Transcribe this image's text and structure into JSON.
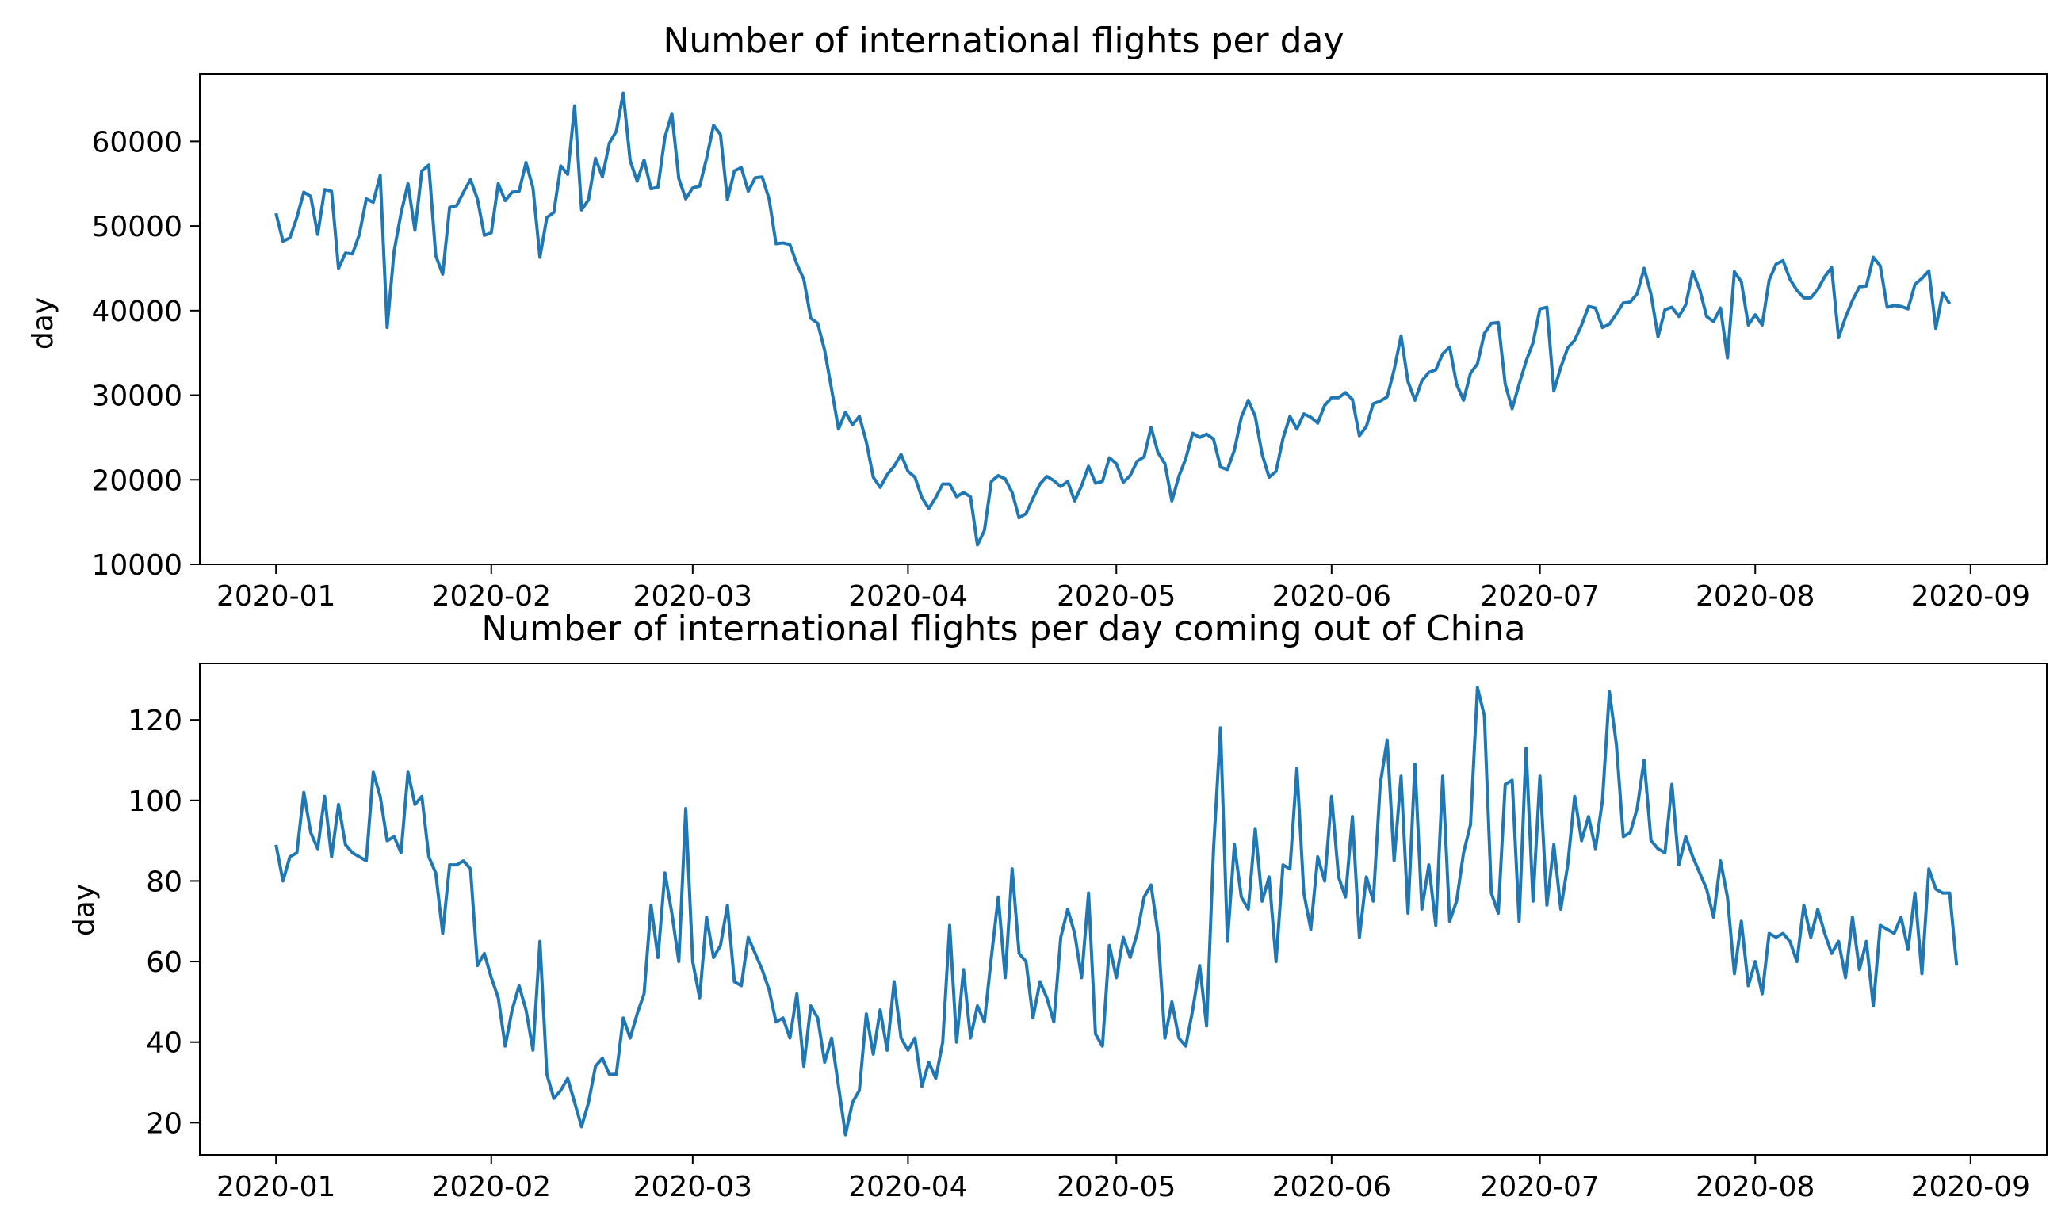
{
  "figure": {
    "charts": [
      {
        "type": "line",
        "title": "Number of international flights per day",
        "xlabel": "",
        "ylabel": "day",
        "ylim": [
          10000,
          68000
        ],
        "y_ticks": [
          10000,
          20000,
          30000,
          40000,
          50000,
          60000
        ],
        "xlim": [
          "2020-01-01",
          "2020-09-01"
        ],
        "x_ticks": [
          "2020-01",
          "2020-02",
          "2020-03",
          "2020-04",
          "2020-05",
          "2020-06",
          "2020-07",
          "2020-08",
          "2020-09"
        ],
        "grid": false,
        "line_color": "#1f77b4",
        "series": [
          {
            "x_start": "2020-01-01",
            "x_step_days": 1,
            "values": [
              51500,
              48200,
              48600,
              51000,
              54000,
              53500,
              49000,
              54300,
              54100,
              45000,
              46800,
              46700,
              49000,
              53200,
              52800,
              56000,
              38000,
              47000,
              51500,
              55000,
              49500,
              56500,
              57200,
              46500,
              44300,
              52200,
              52400,
              54000,
              55500,
              53200,
              48900,
              49200,
              55000,
              53000,
              54000,
              54100,
              57500,
              54500,
              46300,
              51000,
              51600,
              57100,
              56100,
              64200,
              51900,
              53100,
              58000,
              55800,
              59800,
              61200,
              65700,
              57700,
              55300,
              57800,
              54400,
              54600,
              60500,
              63300,
              55600,
              53200,
              54500,
              54700,
              58000,
              61900,
              60800,
              53100,
              56500,
              56900,
              54100,
              55700,
              55800,
              53200,
              47900,
              48000,
              47800,
              45500,
              43700,
              39100,
              38500,
              35300,
              30700,
              26000,
              28000,
              26500,
              27500,
              24500,
              20300,
              19100,
              20600,
              21600,
              23000,
              21000,
              20300,
              17900,
              16600,
              17900,
              19500,
              19500,
              18000,
              18500,
              18000,
              12300,
              14000,
              19800,
              20500,
              20100,
              18500,
              15500,
              16000,
              17800,
              19500,
              20400,
              19900,
              19200,
              19800,
              17500,
              19300,
              21600,
              19600,
              19800,
              22600,
              21900,
              19700,
              20500,
              22200,
              22700,
              26200,
              23200,
              21900,
              17500,
              20400,
              22500,
              25500,
              25000,
              25400,
              24800,
              21500,
              21200,
              23500,
              27400,
              29400,
              27500,
              23000,
              20300,
              21000,
              24900,
              27500,
              26000,
              27800,
              27400,
              26700,
              28800,
              29700,
              29700,
              30300,
              29500,
              25200,
              26300,
              29000,
              29300,
              29800,
              33000,
              37000,
              31600,
              29400,
              31700,
              32700,
              33000,
              34900,
              35700,
              31300,
              29400,
              32600,
              33700,
              37300,
              38500,
              38600,
              31300,
              28400,
              31300,
              34000,
              36200,
              40200,
              40400,
              30500,
              33300,
              35600,
              36500,
              38300,
              40500,
              40300,
              38000,
              38400,
              39600,
              40900,
              41000,
              42000,
              45000,
              41900,
              36900,
              40100,
              40400,
              39300,
              40700,
              44600,
              42500,
              39300,
              38700,
              40300,
              34400,
              44600,
              43400,
              38300,
              39500,
              38300,
              43600,
              45500,
              45900,
              43700,
              42400,
              41500,
              41500,
              42500,
              44000,
              45100,
              36800,
              39200,
              41200,
              42800,
              42900,
              46300,
              45300,
              40400,
              40600,
              40500,
              40200,
              43100,
              43800,
              44700,
              37900,
              42100,
              40800
            ]
          }
        ]
      },
      {
        "type": "line",
        "title": "Number of international flights per day coming out of China",
        "xlabel": "",
        "ylabel": "day",
        "ylim": [
          12,
          134
        ],
        "y_ticks": [
          20,
          40,
          60,
          80,
          100,
          120
        ],
        "xlim": [
          "2020-01-01",
          "2020-09-01"
        ],
        "x_ticks": [
          "2020-01",
          "2020-02",
          "2020-03",
          "2020-04",
          "2020-05",
          "2020-06",
          "2020-07",
          "2020-08",
          "2020-09"
        ],
        "grid": false,
        "line_color": "#1f77b4",
        "series": [
          {
            "x_start": "2020-01-01",
            "x_step_days": 1,
            "values": [
              89,
              80,
              86,
              87,
              102,
              92,
              88,
              101,
              86,
              99,
              89,
              87,
              86,
              85,
              107,
              101,
              90,
              91,
              87,
              107,
              99,
              101,
              86,
              82,
              67,
              84,
              84,
              85,
              83,
              59,
              62,
              56,
              51,
              39,
              48,
              54,
              48,
              38,
              65,
              32,
              26,
              28,
              31,
              25,
              19,
              25,
              34,
              36,
              32,
              32,
              46,
              41,
              47,
              52,
              74,
              61,
              82,
              72,
              60,
              98,
              60,
              51,
              71,
              61,
              64,
              74,
              55,
              54,
              66,
              62,
              58,
              53,
              45,
              46,
              41,
              52,
              34,
              49,
              46,
              35,
              41,
              29,
              17,
              25,
              28,
              47,
              37,
              48,
              38,
              55,
              41,
              38,
              41,
              29,
              35,
              31,
              40,
              69,
              40,
              58,
              41,
              49,
              45,
              61,
              76,
              56,
              83,
              62,
              60,
              46,
              55,
              51,
              45,
              66,
              73,
              67,
              56,
              77,
              42,
              39,
              64,
              56,
              66,
              61,
              67,
              76,
              79,
              67,
              41,
              50,
              41,
              39,
              48,
              59,
              44,
              88,
              118,
              65,
              89,
              76,
              73,
              93,
              75,
              81,
              60,
              84,
              83,
              108,
              77,
              68,
              86,
              80,
              101,
              81,
              76,
              96,
              66,
              81,
              75,
              104,
              115,
              85,
              106,
              72,
              109,
              73,
              84,
              69,
              106,
              70,
              75,
              87,
              94,
              128,
              121,
              77,
              72,
              104,
              105,
              70,
              113,
              75,
              106,
              74,
              89,
              73,
              84,
              101,
              90,
              96,
              88,
              100,
              127,
              114,
              91,
              92,
              98,
              110,
              90,
              88,
              87,
              104,
              84,
              91,
              86,
              82,
              78,
              71,
              85,
              76,
              57,
              70,
              54,
              60,
              52,
              67,
              66,
              67,
              65,
              60,
              74,
              66,
              73,
              67,
              62,
              65,
              56,
              71,
              58,
              65,
              49,
              69,
              68,
              67,
              71,
              63,
              77,
              57,
              83,
              78,
              77,
              77,
              59
            ]
          }
        ]
      }
    ]
  }
}
